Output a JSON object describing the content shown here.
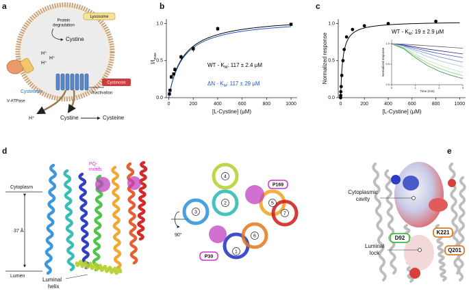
{
  "panel_labels": [
    "a",
    "b",
    "c",
    "d",
    "e"
  ],
  "panel_a": {
    "lysosome": "Lysosome",
    "protein_degradation": [
      "Protein",
      "degradation"
    ],
    "cystine_inside": "Cystine",
    "protons": [
      "H⁺",
      "H⁺",
      "H⁺"
    ],
    "v_atpase": "V-ATPase",
    "cystinosin": "Cystinosin",
    "inactivation": "Inactivation",
    "cystinosis": "Cystinosis",
    "proton_out": "H⁺",
    "cystine_out": "Cystine",
    "cysteine": "Cysteine"
  },
  "chart_data": [
    {
      "type": "scatter",
      "xlabel": "[L-Cystine] (μM)",
      "ylabel": {
        "main": "I/I",
        "sub": "max"
      },
      "xlim": [
        -20,
        1050
      ],
      "ylim": [
        0,
        1.06
      ],
      "xticks": [
        0,
        200,
        400,
        600,
        800,
        1000
      ],
      "yticks": [
        {
          "value": 0,
          "label": "0.0"
        },
        {
          "value": 0.5,
          "label": "0.5"
        },
        {
          "value": 1,
          "label": "1.0"
        }
      ],
      "x": [
        5,
        10,
        20,
        40,
        50,
        100,
        200,
        400,
        1000
      ],
      "values": [
        0.05,
        0.1,
        0.28,
        0.32,
        0.38,
        0.55,
        0.66,
        0.93,
        0.99
      ],
      "errors": [
        0.02,
        0.02,
        0.03,
        0.02,
        0.03,
        0.03,
        0.04,
        0.03,
        0.02
      ],
      "marker": "square",
      "color": "#000000",
      "fits": [
        {
          "annotation": {
            "prefix": "WT - K",
            "sub": "M",
            "suffix": ": 117 ± 2.4 μM"
          },
          "km": 117,
          "vmax": 1.1,
          "color": "#000000"
        },
        {
          "annotation": {
            "prefix": "ΔN - K",
            "sub": "M",
            "suffix": ": 117 ± 29 μM"
          },
          "km": 117,
          "vmax": 1.07,
          "color": "#2255cc"
        }
      ]
    },
    {
      "type": "scatter",
      "xlabel": "[L-Cystine] (μM)",
      "ylabel": {
        "main": "Normalized response",
        "sub": ""
      },
      "xlim": [
        -20,
        1050
      ],
      "ylim": [
        0,
        1.06
      ],
      "xticks": [
        0,
        200,
        400,
        600,
        800,
        1000
      ],
      "yticks": [
        {
          "value": 0,
          "label": "0.0"
        },
        {
          "value": 0.5,
          "label": "0.5"
        },
        {
          "value": 1,
          "label": "1.0"
        }
      ],
      "x": [
        0,
        1,
        2,
        5,
        10,
        20,
        30,
        50,
        100,
        200,
        400,
        800
      ],
      "values": [
        0,
        0.03,
        0.08,
        0.15,
        0.3,
        0.5,
        0.65,
        0.82,
        0.92,
        0.97,
        1.0,
        1.03
      ],
      "marker": "circle",
      "color": "#000000",
      "fits": [
        {
          "annotation": {
            "prefix": "WT - K",
            "sub": "M",
            "suffix": ": 19 ± 2.9 μM"
          },
          "km": 19,
          "vmax": 1.03,
          "color": "#000000"
        }
      ],
      "inset": {
        "xlabel": "Time (min)",
        "ylabel": "Normalized response",
        "xlim": [
          0,
          3
        ],
        "ylim": [
          0,
          1.1
        ],
        "xticks": [
          0,
          1,
          2,
          3
        ],
        "yticks": [
          {
            "value": 0,
            "label": "0.0"
          },
          {
            "value": 0.5,
            "label": "0.5"
          },
          {
            "value": 1,
            "label": "1.0"
          }
        ],
        "x": [
          0,
          0.5,
          1,
          1.5,
          2,
          2.5,
          3
        ],
        "traces": [
          {
            "color": "#555555",
            "values": [
              1,
              0.99,
              0.97,
              0.95,
              0.93,
              0.91,
              0.89
            ]
          },
          {
            "color": "#1f2a8a",
            "values": [
              1,
              0.97,
              0.92,
              0.87,
              0.83,
              0.79,
              0.75
            ]
          },
          {
            "color": "#3b4fc4",
            "values": [
              1,
              0.96,
              0.89,
              0.82,
              0.76,
              0.71,
              0.66
            ]
          },
          {
            "color": "#6f86e0",
            "values": [
              1,
              0.95,
              0.85,
              0.76,
              0.68,
              0.61,
              0.55
            ]
          },
          {
            "color": "#a7b8f0",
            "values": [
              1,
              0.94,
              0.81,
              0.69,
              0.59,
              0.51,
              0.44
            ]
          },
          {
            "color": "#bfe6b8",
            "values": [
              1,
              0.92,
              0.75,
              0.6,
              0.48,
              0.38,
              0.3
            ]
          },
          {
            "color": "#7fcf73",
            "values": [
              1,
              0.9,
              0.7,
              0.53,
              0.4,
              0.3,
              0.22
            ]
          },
          {
            "color": "#2e8b3a",
            "values": [
              1,
              0.88,
              0.66,
              0.47,
              0.33,
              0.23,
              0.15
            ]
          }
        ]
      }
    }
  ],
  "panel_d": {
    "pq_motifs": [
      "PQ-",
      "motifs"
    ],
    "cytoplasm": "Cytoplasm",
    "distance": "37 Å",
    "lumen": "Lumen",
    "luminal_helix": [
      "Luminal",
      "helix"
    ],
    "rotation": "90°",
    "helices": [
      "1",
      "2",
      "3",
      "4",
      "5",
      "6",
      "7"
    ],
    "p169": "P169",
    "p30": "P30"
  },
  "panel_e": {
    "cytoplasmic_cavity": [
      "Cytoplasmic",
      "cavity"
    ],
    "luminal_lock": [
      "Luminal",
      "lock"
    ],
    "d92": "D92",
    "k221": "K221",
    "q201": "Q201"
  }
}
